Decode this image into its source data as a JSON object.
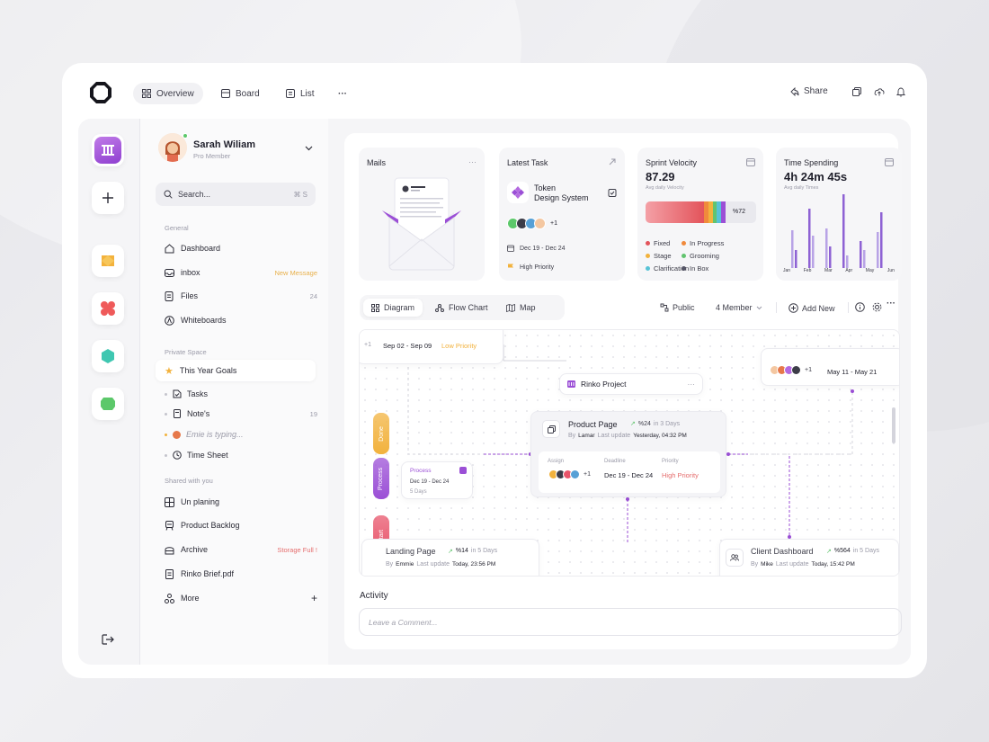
{
  "topbar": {
    "tabs": [
      {
        "label": "Overview",
        "icon": "grid-icon"
      },
      {
        "label": "Board",
        "icon": "board-icon"
      },
      {
        "label": "List",
        "icon": "list-icon"
      }
    ],
    "more": "···",
    "share_label": "Share"
  },
  "profile": {
    "name": "Sarah Wiliam",
    "role": "Pro Member"
  },
  "search": {
    "label": "Search...",
    "shortcut": "⌘ S"
  },
  "sidebar": {
    "general_header": "General",
    "general": [
      {
        "label": "Dashboard",
        "icon": "home-icon",
        "badge": ""
      },
      {
        "label": "inbox",
        "icon": "inbox-icon",
        "badge": "New Message"
      },
      {
        "label": "Files",
        "icon": "files-icon",
        "badge": "24"
      },
      {
        "label": "Whiteboards",
        "icon": "whiteboard-icon",
        "badge": ""
      }
    ],
    "private_header": "Private Space",
    "goals_label": "This Year Goals",
    "private_sub": [
      {
        "label": "Tasks",
        "badge": ""
      },
      {
        "label": "Note's",
        "badge": "19"
      },
      {
        "label": "Emie is typing...",
        "badge": ""
      },
      {
        "label": "Time Sheet",
        "badge": ""
      }
    ],
    "shared_header": "Shared with you",
    "shared": [
      {
        "label": "Un planing",
        "badge": ""
      },
      {
        "label": "Product Backlog",
        "badge": ""
      },
      {
        "label": "Archive",
        "badge": "Storage Full !"
      },
      {
        "label": "Rinko Brief.pdf",
        "badge": ""
      },
      {
        "label": "More",
        "badge": "+"
      }
    ]
  },
  "cards": {
    "mails": {
      "title": "Mails",
      "menu": "···"
    },
    "latest_task": {
      "title": "Latest Task",
      "task_line1": "Token",
      "task_line2": "Design System",
      "extra_members": "+1",
      "dates": "Dec 19 - Dec 24",
      "priority": "High Priority"
    },
    "sprint": {
      "title": "Sprint Velocity",
      "value": "87.29",
      "sub": "Avg daily Velocity",
      "percent": "%72",
      "fill_fraction": 0.72,
      "legend": [
        {
          "label": "Fixed",
          "color": "#e3545b"
        },
        {
          "label": "In Progress",
          "color": "#f08a3c"
        },
        {
          "label": "Stage",
          "color": "#f2b23d"
        },
        {
          "label": "Grooming",
          "color": "#62c46f"
        },
        {
          "label": "Clarification",
          "color": "#57c3d6"
        },
        {
          "label": "In Box",
          "color": "#555566"
        }
      ]
    },
    "time": {
      "title": "Time Spending",
      "value": "4h 24m 45s",
      "sub": "Avg daily Times",
      "months": [
        "Jan",
        "Feb",
        "Mar",
        "Apr",
        "May",
        "Jun"
      ]
    }
  },
  "view_tabs": [
    {
      "label": "Diagram",
      "icon": "diagram-icon"
    },
    {
      "label": "Flow Chart",
      "icon": "flowchart-icon"
    },
    {
      "label": "Map",
      "icon": "map-icon"
    }
  ],
  "controls": {
    "public": "Public",
    "members": "4 Member",
    "add_new": "Add New"
  },
  "diagram": {
    "top_left": {
      "dates": "Sep 02 - Sep 09",
      "priority": "Low Priority",
      "plus": "+1"
    },
    "top_right": {
      "dates": "May 11 - May 21",
      "plus": "+1"
    },
    "project": {
      "label": "Rinko Project",
      "menu": "···"
    },
    "product": {
      "title": "Product Page",
      "trend": "%24",
      "days": "in 3 Days",
      "by": "By",
      "author": "Lamar",
      "updated_label": "Last update",
      "updated": "Yesterday, 04:32 PM",
      "assign_label": "Assign",
      "deadline_label": "Deadline",
      "deadline": "Dec 19 - Dec 24",
      "priority_label": "Priority",
      "priority": "High Priority",
      "plus": "+1"
    },
    "process_card": {
      "label": "Process",
      "dates": "Dec 19 - Dec 24",
      "duration": "5 Days"
    },
    "stages": [
      {
        "label": "Done",
        "color": "#f2b23d"
      },
      {
        "label": "Process",
        "color": "#9b4fd6"
      },
      {
        "label": "Start",
        "color": "#e8546a"
      }
    ],
    "landing": {
      "title": "Landing Page",
      "trend": "%14",
      "days": "in 5 Days",
      "by": "By",
      "author": "Emmie",
      "updated_label": "Last update",
      "updated": "Today, 23:56 PM"
    },
    "client": {
      "title": "Client Dashboard",
      "trend": "%564",
      "days": "in 5 Days",
      "by": "By",
      "author": "Mike",
      "updated_label": "Last update",
      "updated": "Today, 15:42 PM"
    }
  },
  "activity": {
    "title": "Activity",
    "placeholder": "Leave a Comment..."
  }
}
